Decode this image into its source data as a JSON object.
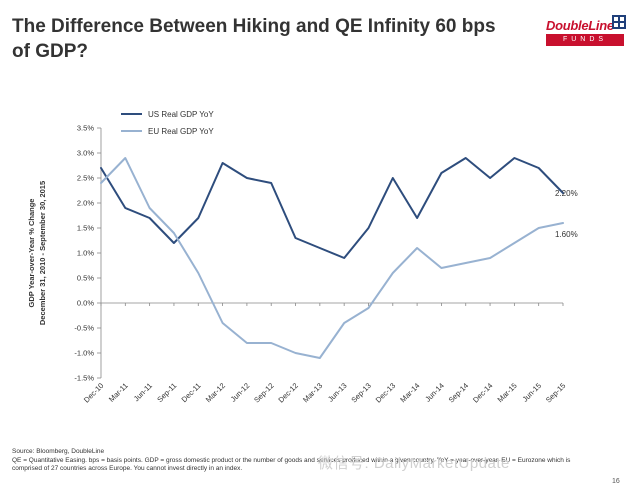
{
  "slide": {
    "title": "The Difference Between Hiking and QE Infinity 60 bps of GDP?",
    "logo_brand": "DoubleLine",
    "logo_sub": "FUNDS",
    "page_number": "16",
    "source_line": "Source: Bloomberg, DoubleLine",
    "definition_line": "QE = Quantitative Easing. bps = basis points. GDP = gross domestic product or the number of goods and services produced within a given country. YoY = year-over-year. EU = Eurozone which is",
    "definition_line2": "comprised of 27 countries across Europe. You cannot invest directly in an index.",
    "watermark": "微信号: DailyMarketUpdate",
    "colors": {
      "us_series": "#2e4d7d",
      "eu_series": "#98b2d1",
      "logo_red": "#c8102e",
      "logo_blue": "#1f3f7a"
    }
  },
  "chart_data": {
    "type": "line",
    "title": "",
    "xlabel": "",
    "ylabel": "GDP Year-over-Year % Change",
    "ylabel2": "December 31, 2010 - September 30, 2015",
    "ylim": [
      -1.5,
      3.5
    ],
    "yticks": [
      -1.5,
      -1.0,
      -0.5,
      0.0,
      0.5,
      1.0,
      1.5,
      2.0,
      2.5,
      3.0,
      3.5
    ],
    "ytick_labels": [
      "-1.5%",
      "-1.0%",
      "-0.5%",
      "0.0%",
      "0.5%",
      "1.0%",
      "1.5%",
      "2.0%",
      "2.5%",
      "3.0%",
      "3.5%"
    ],
    "categories": [
      "Dec-10",
      "Mar-11",
      "Jun-11",
      "Sep-11",
      "Dec-11",
      "Mar-12",
      "Jun-12",
      "Sep-12",
      "Dec-12",
      "Mar-13",
      "Jun-13",
      "Sep-13",
      "Dec-13",
      "Mar-14",
      "Jun-14",
      "Sep-14",
      "Dec-14",
      "Mar-15",
      "Jun-15",
      "Sep-15"
    ],
    "grid": false,
    "legend": "top-left",
    "series": [
      {
        "name": "US Real GDP YoY",
        "values": [
          2.7,
          1.9,
          1.7,
          1.2,
          1.7,
          2.8,
          2.5,
          2.4,
          1.3,
          1.1,
          0.9,
          1.5,
          2.5,
          1.7,
          2.6,
          2.9,
          2.5,
          2.9,
          2.7,
          2.2
        ],
        "end_label": "2.20%"
      },
      {
        "name": "EU Real GDP YoY",
        "values": [
          2.4,
          2.9,
          1.9,
          1.4,
          0.6,
          -0.4,
          -0.8,
          -0.8,
          -1.0,
          -1.1,
          -0.4,
          -0.1,
          0.6,
          1.1,
          0.7,
          0.8,
          0.9,
          1.2,
          1.5,
          1.6
        ],
        "end_label": "1.60%"
      }
    ]
  }
}
